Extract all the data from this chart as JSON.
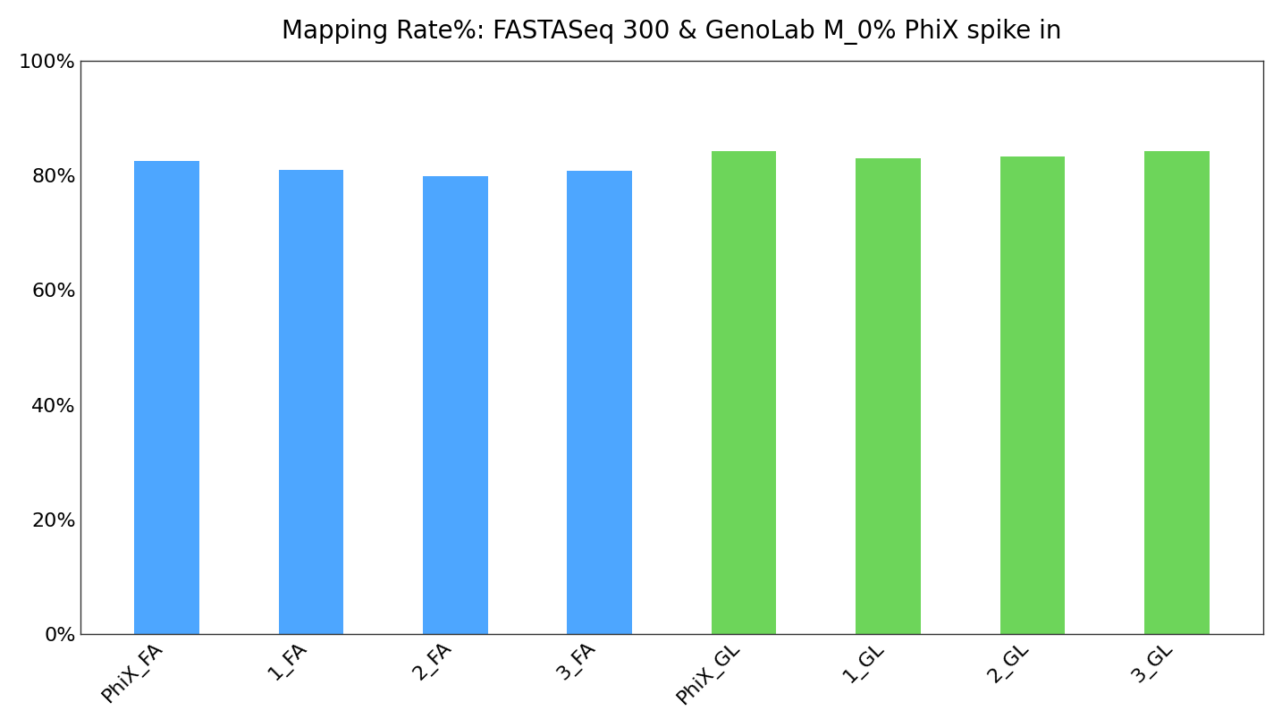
{
  "categories": [
    "PhiX_FA",
    "1_FA",
    "2_FA",
    "3_FA",
    "PhiX_GL",
    "1_GL",
    "2_GL",
    "3_GL"
  ],
  "values": [
    82.5,
    81.0,
    79.8,
    80.8,
    84.2,
    83.0,
    83.3,
    84.2
  ],
  "colors": [
    "#4da6ff",
    "#4da6ff",
    "#4da6ff",
    "#4da6ff",
    "#6dd55a",
    "#6dd55a",
    "#6dd55a",
    "#6dd55a"
  ],
  "title": "Mapping Rate%: FASTASeq 300 & GenoLab M_0% PhiX spike in",
  "ylim": [
    0,
    100
  ],
  "yticks": [
    0,
    20,
    40,
    60,
    80,
    100
  ],
  "bar_width": 0.45,
  "title_fontsize": 20,
  "tick_fontsize": 16,
  "bg_color": "#ffffff"
}
